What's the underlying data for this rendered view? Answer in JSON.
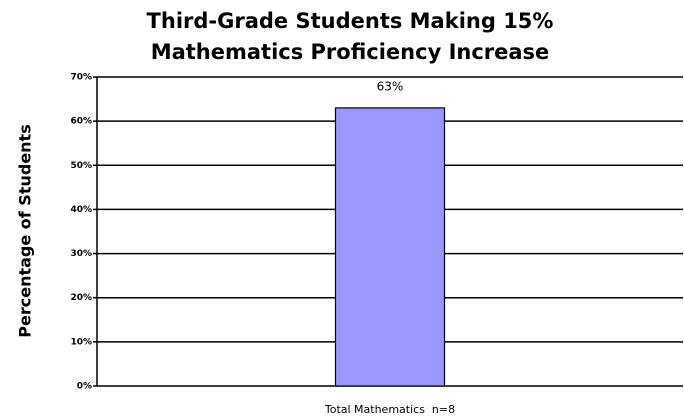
{
  "chart_data": {
    "type": "bar",
    "title": "Third-Grade Students Making 15% Mathematics Proficiency Increase",
    "y_label": "Percentage of Students",
    "categories": [
      "Total Mathematics  n=8"
    ],
    "values": [
      63
    ],
    "value_labels": [
      "63%"
    ],
    "color": "#9999ff",
    "ylim": [
      0,
      70
    ],
    "yticks": [
      {
        "value": 0,
        "label": "0%"
      },
      {
        "value": 10,
        "label": "10%"
      },
      {
        "value": 20,
        "label": "20%"
      },
      {
        "value": 30,
        "label": "30%"
      },
      {
        "value": 40,
        "label": "40%"
      },
      {
        "value": 50,
        "label": "50%"
      },
      {
        "value": 60,
        "label": "60%"
      },
      {
        "value": 70,
        "label": "70%"
      }
    ],
    "grid": true
  }
}
